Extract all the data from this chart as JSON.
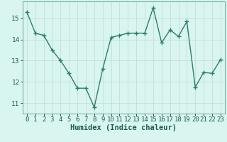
{
  "x": [
    0,
    1,
    2,
    3,
    4,
    5,
    6,
    7,
    8,
    9,
    10,
    11,
    12,
    13,
    14,
    15,
    16,
    17,
    18,
    19,
    20,
    21,
    22,
    23
  ],
  "y": [
    15.3,
    14.3,
    14.2,
    13.5,
    13.0,
    12.4,
    11.7,
    11.7,
    10.8,
    12.6,
    14.1,
    14.2,
    14.3,
    14.3,
    14.3,
    15.5,
    13.85,
    14.45,
    14.15,
    14.85,
    11.75,
    12.45,
    12.4,
    13.05
  ],
  "line_color": "#2e7d6e",
  "marker": "+",
  "marker_size": 4,
  "background_color": "#d8f5f0",
  "grid_color": "#c4dedd",
  "xlabel": "Humidex (Indice chaleur)",
  "ylim": [
    10.5,
    15.8
  ],
  "xlim": [
    -0.5,
    23.5
  ],
  "yticks": [
    11,
    12,
    13,
    14,
    15
  ],
  "xticks": [
    0,
    1,
    2,
    3,
    4,
    5,
    6,
    7,
    8,
    9,
    10,
    11,
    12,
    13,
    14,
    15,
    16,
    17,
    18,
    19,
    20,
    21,
    22,
    23
  ],
  "tick_label_size": 6.5,
  "xlabel_fontsize": 7.5,
  "line_width": 1.0,
  "marker_edge_width": 1.0
}
